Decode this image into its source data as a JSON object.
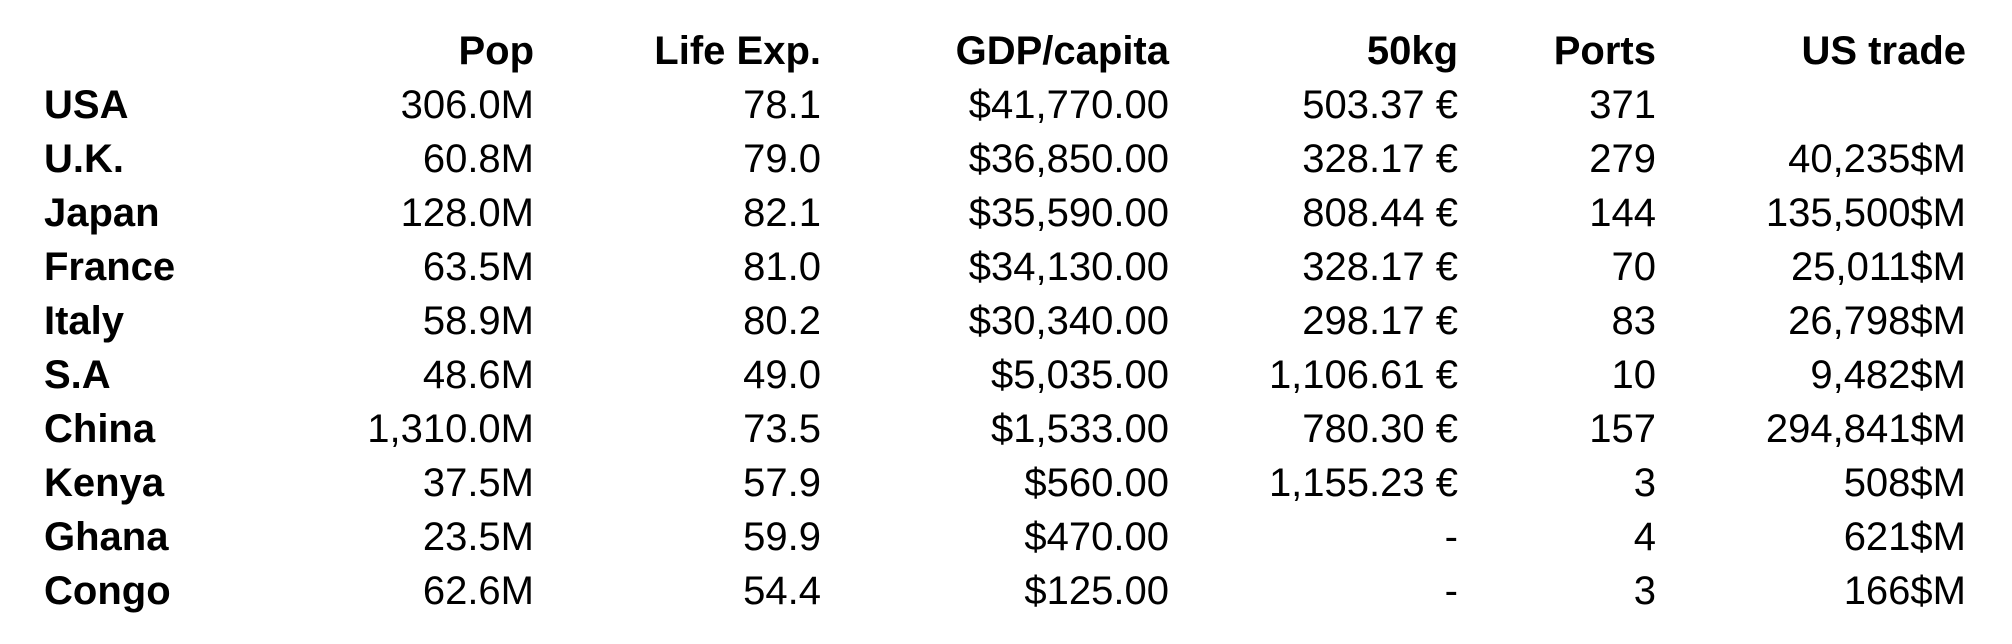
{
  "table": {
    "headers": [
      "",
      "Pop",
      "Life Exp.",
      "GDP/capita",
      "50kg",
      "Ports",
      "US trade"
    ],
    "rows": [
      {
        "country": "USA",
        "pop": "306.0M",
        "life_exp": "78.1",
        "gdp_per_capita": "$41,770.00",
        "price_50kg": "503.37 €",
        "ports": "371",
        "us_trade": ""
      },
      {
        "country": "U.K.",
        "pop": "60.8M",
        "life_exp": "79.0",
        "gdp_per_capita": "$36,850.00",
        "price_50kg": "328.17 €",
        "ports": "279",
        "us_trade": "40,235$M"
      },
      {
        "country": "Japan",
        "pop": "128.0M",
        "life_exp": "82.1",
        "gdp_per_capita": "$35,590.00",
        "price_50kg": "808.44 €",
        "ports": "144",
        "us_trade": "135,500$M"
      },
      {
        "country": "France",
        "pop": "63.5M",
        "life_exp": "81.0",
        "gdp_per_capita": "$34,130.00",
        "price_50kg": "328.17 €",
        "ports": "70",
        "us_trade": "25,011$M"
      },
      {
        "country": "Italy",
        "pop": "58.9M",
        "life_exp": "80.2",
        "gdp_per_capita": "$30,340.00",
        "price_50kg": "298.17 €",
        "ports": "83",
        "us_trade": "26,798$M"
      },
      {
        "country": "S.A",
        "pop": "48.6M",
        "life_exp": "49.0",
        "gdp_per_capita": "$5,035.00",
        "price_50kg": "1,106.61 €",
        "ports": "10",
        "us_trade": "9,482$M"
      },
      {
        "country": "China",
        "pop": "1,310.0M",
        "life_exp": "73.5",
        "gdp_per_capita": "$1,533.00",
        "price_50kg": "780.30 €",
        "ports": "157",
        "us_trade": "294,841$M"
      },
      {
        "country": "Kenya",
        "pop": "37.5M",
        "life_exp": "57.9",
        "gdp_per_capita": "$560.00",
        "price_50kg": "1,155.23 €",
        "ports": "3",
        "us_trade": "508$M"
      },
      {
        "country": "Ghana",
        "pop": "23.5M",
        "life_exp": "59.9",
        "gdp_per_capita": "$470.00",
        "price_50kg": "-",
        "ports": "4",
        "us_trade": "621$M"
      },
      {
        "country": "Congo",
        "pop": "62.6M",
        "life_exp": "54.4",
        "gdp_per_capita": "$125.00",
        "price_50kg": "-",
        "ports": "3",
        "us_trade": "166$M"
      }
    ]
  }
}
